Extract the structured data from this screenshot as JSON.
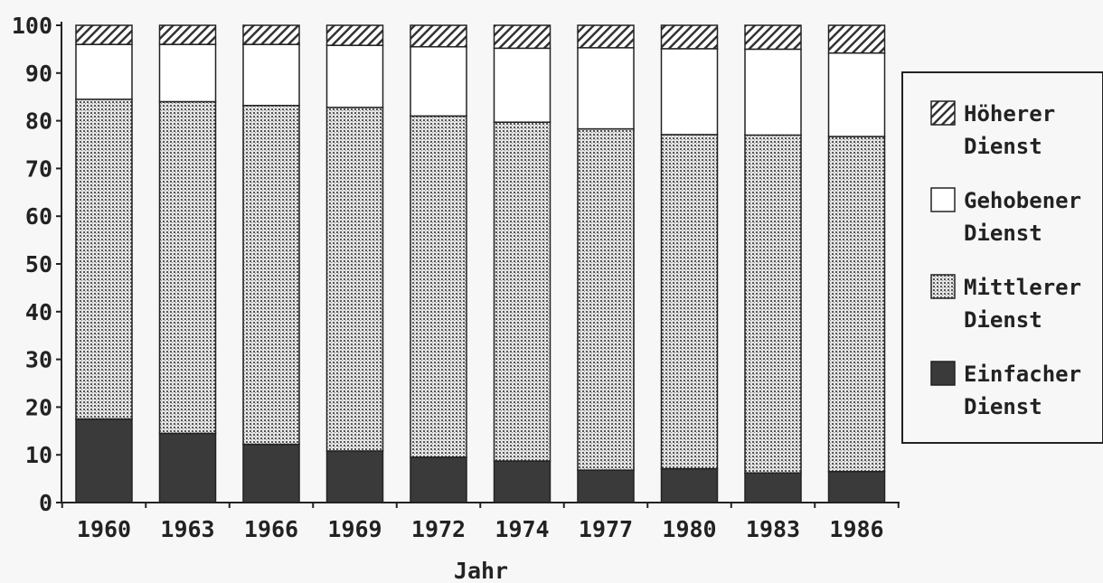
{
  "chart_data": {
    "type": "bar",
    "stacked": true,
    "title": "",
    "xlabel": "Jahr",
    "ylabel": "",
    "ylim": [
      0,
      100
    ],
    "yticks": [
      0,
      10,
      20,
      30,
      40,
      50,
      60,
      70,
      80,
      90,
      100
    ],
    "categories": [
      "1960",
      "1963",
      "1966",
      "1969",
      "1972",
      "1974",
      "1977",
      "1980",
      "1983",
      "1986"
    ],
    "series": [
      {
        "name": "Einfacher Dienst",
        "pattern": "solid",
        "color": "#3a3a3a",
        "values": [
          17.5,
          14.5,
          12.2,
          10.8,
          9.5,
          8.7,
          6.8,
          7.1,
          6.2,
          6.5
        ]
      },
      {
        "name": "Mittlerer Dienst",
        "pattern": "dotted",
        "color": "#bdbdbd",
        "values": [
          67.0,
          69.5,
          71.0,
          72.0,
          71.5,
          71.0,
          71.5,
          70.0,
          70.8,
          70.2
        ]
      },
      {
        "name": "Gehobener Dienst",
        "pattern": "open",
        "color": "#ffffff",
        "values": [
          11.5,
          12.0,
          12.8,
          13.0,
          14.5,
          15.5,
          17.0,
          18.0,
          18.0,
          17.5
        ]
      },
      {
        "name": "Höherer Dienst",
        "pattern": "hatched",
        "color": "#ffffff",
        "values": [
          4.0,
          4.0,
          4.0,
          4.2,
          4.5,
          4.8,
          4.7,
          4.9,
          5.0,
          5.8
        ]
      }
    ],
    "legend_position": "right",
    "legend": [
      {
        "line1": "Höherer",
        "line2": "Dienst",
        "pattern": "hatched"
      },
      {
        "line1": "Gehobener",
        "line2": "Dienst",
        "pattern": "open"
      },
      {
        "line1": "Mittlerer",
        "line2": "Dienst",
        "pattern": "dotted"
      },
      {
        "line1": "Einfacher",
        "line2": "Dienst",
        "pattern": "solid"
      }
    ]
  }
}
